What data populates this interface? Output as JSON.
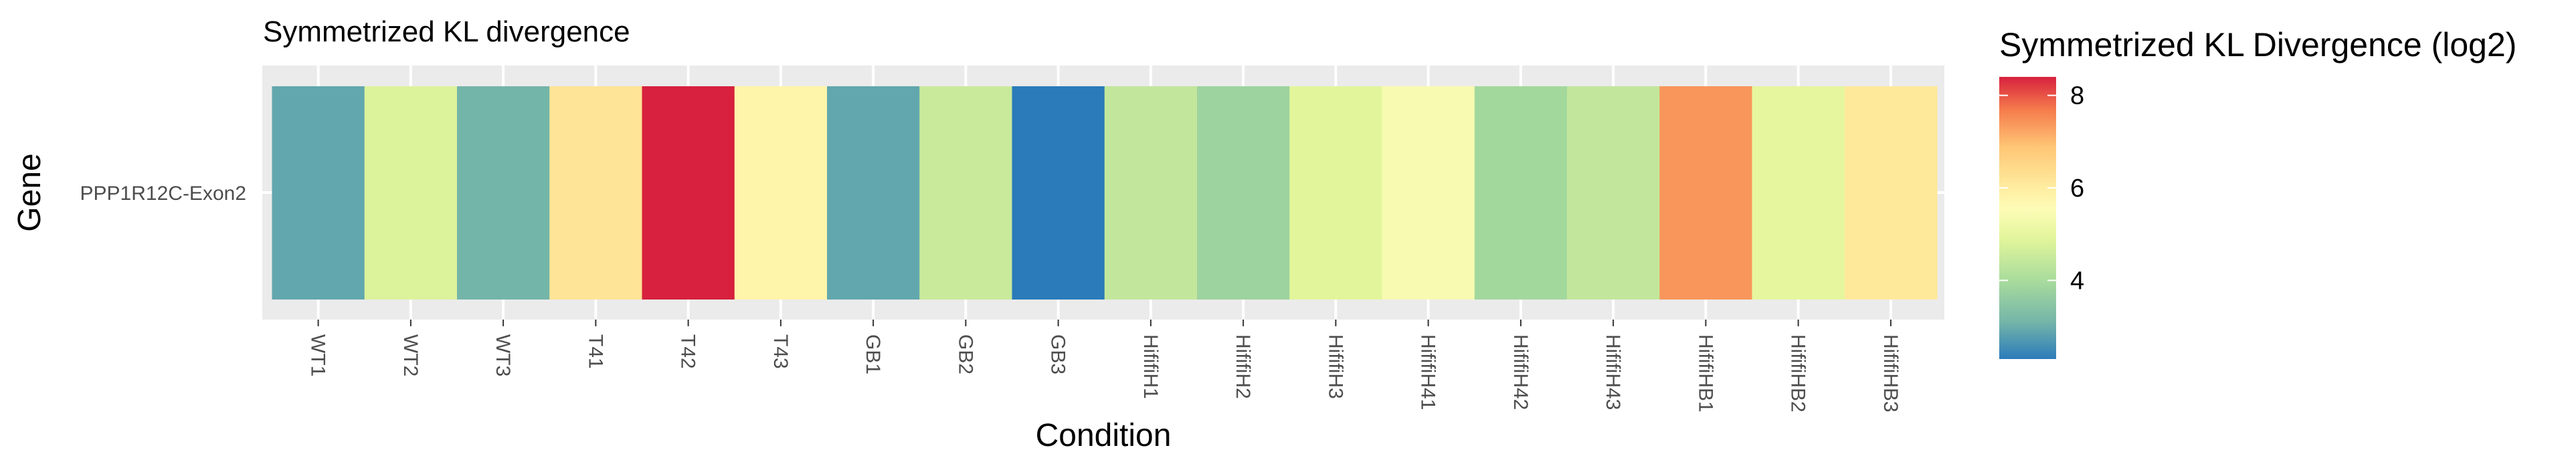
{
  "chart_data": {
    "type": "heatmap",
    "title": "Symmetrized KL divergence",
    "xlabel": "Condition",
    "ylabel": "Gene",
    "rows": [
      "PPP1R12C-Exon2"
    ],
    "categories": [
      "WT1",
      "WT2",
      "WT3",
      "T41",
      "T42",
      "T43",
      "GB1",
      "GB2",
      "GB3",
      "HififiH1",
      "HififiH2",
      "HififiH3",
      "HififiH41",
      "HififiH42",
      "HififiH43",
      "HififiHB1",
      "HififiHB2",
      "HififiHB3"
    ],
    "values": [
      2.9,
      4.8,
      3.1,
      6.2,
      8.4,
      5.8,
      2.9,
      4.5,
      2.3,
      4.4,
      3.8,
      4.9,
      5.4,
      3.9,
      4.4,
      7.4,
      5.0,
      6.1
    ],
    "legend": {
      "title": "Symmetrized KL Divergence (log2)",
      "range": [
        2.3,
        8.4
      ],
      "ticks": [
        4,
        6,
        8
      ],
      "palette": "Spectral",
      "placement": "right"
    },
    "grid": true
  }
}
